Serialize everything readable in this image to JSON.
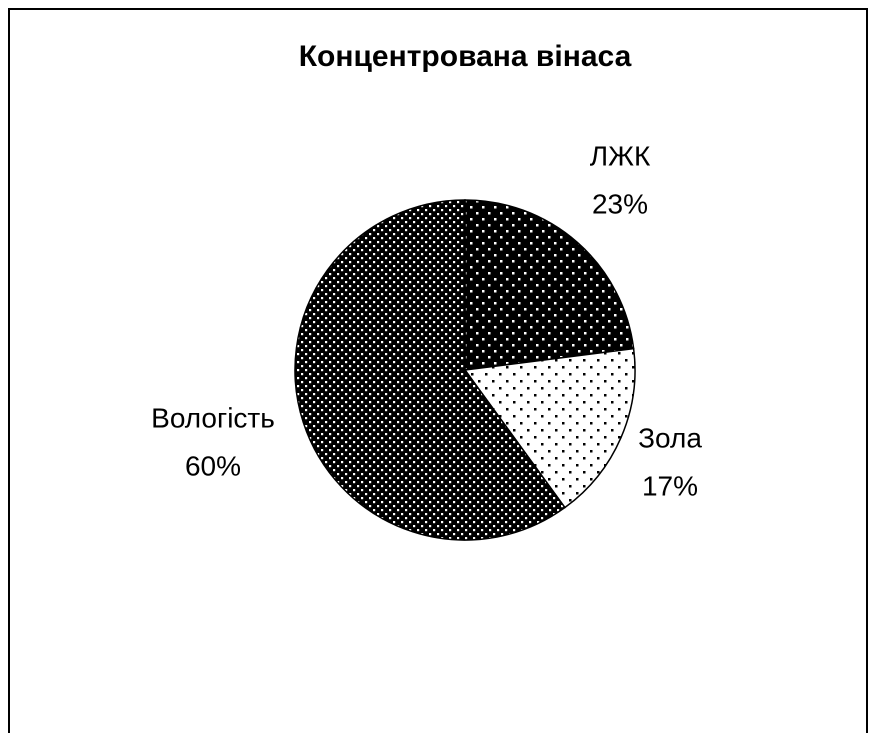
{
  "chart_data": {
    "type": "pie",
    "title": "Концентрована вінаса",
    "categories": [
      "ЛЖК",
      "Зола",
      "Вологість"
    ],
    "values": [
      23,
      17,
      60
    ],
    "value_labels": [
      "23%",
      "17%",
      "60%"
    ],
    "colors": [
      "#000000",
      "#ffffff",
      "#000000"
    ]
  }
}
